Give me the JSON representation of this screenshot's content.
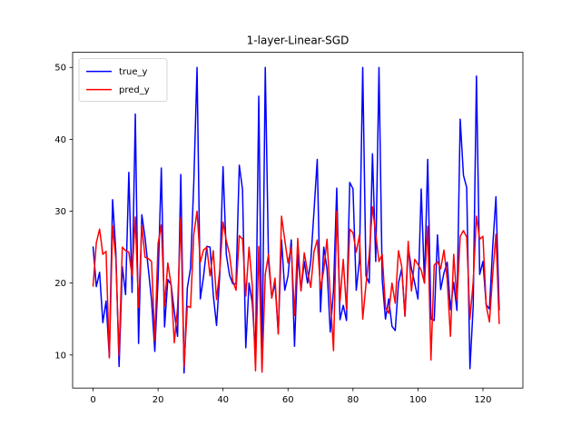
{
  "chart_data": {
    "type": "line",
    "title": "1-layer-Linear-SGD",
    "xlabel": "",
    "ylabel": "",
    "xlim": [
      -6.3,
      132.3
    ],
    "ylim": [
      5.4,
      52.1
    ],
    "x_ticks": [
      0,
      20,
      40,
      60,
      80,
      100,
      120
    ],
    "y_ticks": [
      10,
      20,
      30,
      40,
      50
    ],
    "legend": {
      "position": "top-left",
      "entries": [
        "true_y",
        "pred_y"
      ]
    },
    "grid": false,
    "series": [
      {
        "name": "true_y",
        "color": "#0000ff",
        "values": [
          25.0,
          19.5,
          21.5,
          14.5,
          17.5,
          9.7,
          31.6,
          24.4,
          8.4,
          22.3,
          18.4,
          35.4,
          18.7,
          43.5,
          11.6,
          29.5,
          26.3,
          22.0,
          17.6,
          10.5,
          20.5,
          36.0,
          13.9,
          20.5,
          19.8,
          16.0,
          12.6,
          35.1,
          7.5,
          19.3,
          22.1,
          34.0,
          50.0,
          17.8,
          20.9,
          25.1,
          25.0,
          18.3,
          14.1,
          21.2,
          36.2,
          24.0,
          21.1,
          19.9,
          19.9,
          36.4,
          33.0,
          11.0,
          20.0,
          17.3,
          10.0,
          46.0,
          8.0,
          50.0,
          23.0,
          18.0,
          20.0,
          13.0,
          26.0,
          19.0,
          21.0,
          26.0,
          11.2,
          24.0,
          19.0,
          23.0,
          20.0,
          23.0,
          30.0,
          37.2,
          16.0,
          25.0,
          22.0,
          13.2,
          19.0,
          33.2,
          14.9,
          16.9,
          14.8,
          34.0,
          33.1,
          19.0,
          23.2,
          50.0,
          21.0,
          20.0,
          38.0,
          23.0,
          50.0,
          20.4,
          15.0,
          17.8,
          14.0,
          13.4,
          20.0,
          22.0,
          15.4,
          25.0,
          22.0,
          20.0,
          17.8,
          33.1,
          20.0,
          37.2,
          15.0,
          14.8,
          26.7,
          19.1,
          21.4,
          22.9,
          16.3,
          20.1,
          16.2,
          42.8,
          35.0,
          33.3,
          8.1,
          16.8,
          48.8,
          21.2,
          23.0,
          17.0,
          16.4,
          25.0,
          32.0,
          16.3
        ]
      },
      {
        "name": "pred_y",
        "color": "#ff0000",
        "values": [
          19.6,
          25.6,
          27.5,
          24.0,
          24.4,
          9.6,
          28.0,
          23.4,
          9.9,
          25.0,
          24.5,
          24.3,
          21.0,
          29.2,
          16.6,
          28.0,
          23.6,
          23.4,
          23.0,
          12.0,
          25.5,
          28.1,
          16.8,
          22.8,
          19.8,
          11.7,
          16.6,
          29.1,
          8.4,
          16.8,
          16.6,
          26.8,
          30.0,
          22.9,
          24.6,
          25.0,
          21.0,
          24.5,
          17.7,
          21.8,
          28.5,
          25.9,
          24.0,
          20.3,
          19.0,
          26.6,
          26.1,
          18.2,
          25.0,
          19.7,
          7.8,
          25.1,
          7.6,
          21.2,
          24.0,
          17.9,
          20.7,
          12.9,
          29.3,
          26.0,
          22.8,
          25.0,
          15.5,
          26.2,
          18.9,
          24.2,
          21.6,
          19.4,
          24.4,
          26.0,
          19.2,
          21.8,
          26.1,
          18.3,
          10.6,
          30.0,
          17.4,
          23.3,
          16.3,
          27.5,
          27.0,
          24.3,
          26.7,
          15.0,
          19.8,
          24.0,
          30.6,
          26.8,
          23.0,
          24.0,
          16.6,
          15.8,
          20.0,
          17.2,
          24.5,
          22.3,
          15.4,
          25.8,
          18.9,
          23.3,
          22.6,
          21.8,
          20.0,
          27.9,
          9.3,
          22.5,
          23.0,
          22.0,
          24.6,
          20.5,
          12.6,
          24.0,
          17.6,
          26.5,
          27.3,
          26.4,
          15.0,
          20.2,
          29.3,
          26.1,
          26.5,
          16.9,
          14.6,
          21.2,
          26.8,
          14.4
        ]
      }
    ]
  }
}
